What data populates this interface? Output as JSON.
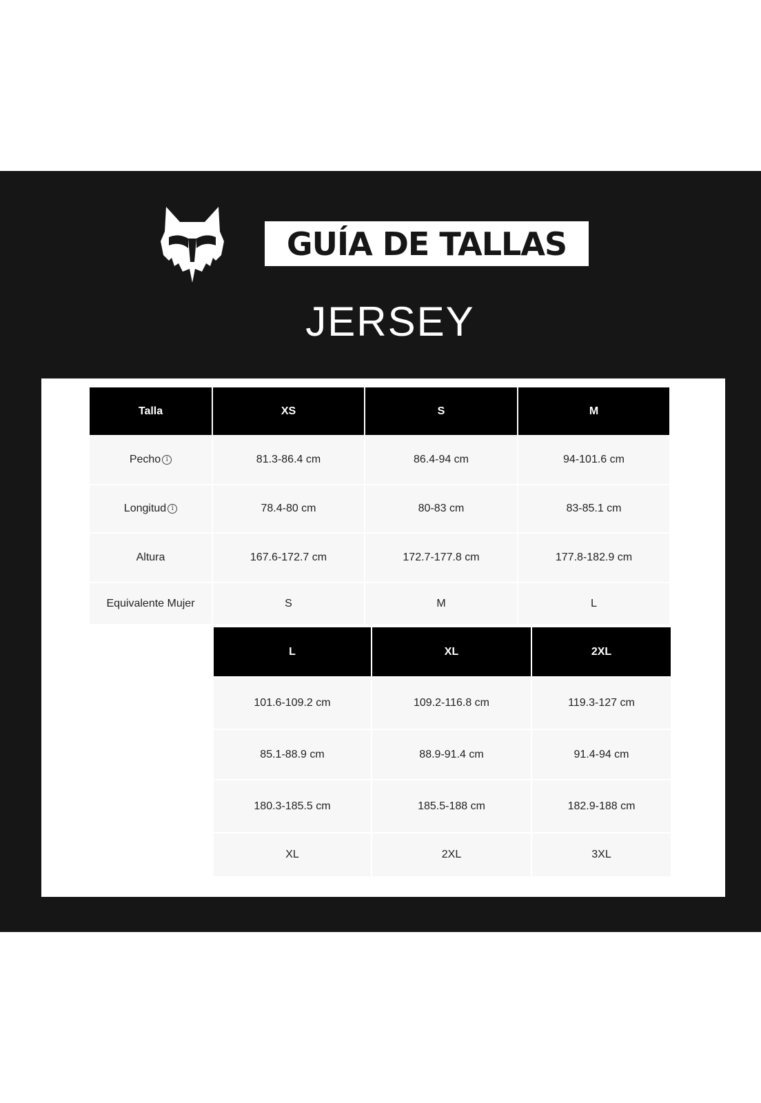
{
  "header": {
    "brand_logo": "fox-head-logo",
    "title": "GUÍA DE TALLAS",
    "subtitle": "JERSEY"
  },
  "table1": {
    "headers": [
      "Talla",
      "XS",
      "S",
      "M"
    ],
    "row_labels": [
      "Pecho",
      "Longitud",
      "Altura",
      "Equivalente Mujer"
    ],
    "info_icon": "info-circle-icon",
    "rows": [
      [
        "81.3-86.4 cm",
        "86.4-94 cm",
        "94-101.6 cm"
      ],
      [
        "78.4-80 cm",
        "80-83 cm",
        "83-85.1 cm"
      ],
      [
        "167.6-172.7 cm",
        "172.7-177.8 cm",
        "177.8-182.9 cm"
      ],
      [
        "S",
        "M",
        "L"
      ]
    ]
  },
  "table2": {
    "headers": [
      "L",
      "XL",
      "2XL"
    ],
    "rows": [
      [
        "101.6-109.2 cm",
        "109.2-116.8 cm",
        "119.3-127 cm"
      ],
      [
        "85.1-88.9 cm",
        "88.9-91.4 cm",
        "91.4-94 cm"
      ],
      [
        "180.3-185.5 cm",
        "185.5-188 cm",
        "182.9-188 cm"
      ],
      [
        "XL",
        "2XL",
        "3XL"
      ]
    ]
  },
  "colors": {
    "background": "#161616",
    "header_cell": "#000000",
    "cell": "#f7f7f7"
  }
}
